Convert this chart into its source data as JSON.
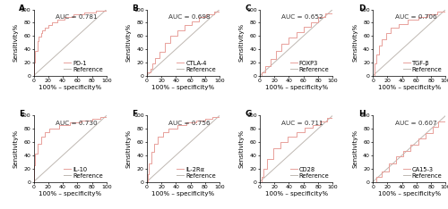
{
  "panels": [
    {
      "label": "A",
      "auc": 0.781,
      "molecule": "PD-1",
      "curve_type": "A"
    },
    {
      "label": "B",
      "auc": 0.698,
      "molecule": "CTLA-4",
      "curve_type": "B"
    },
    {
      "label": "C",
      "auc": 0.652,
      "molecule": "FOXP3",
      "curve_type": "C"
    },
    {
      "label": "D",
      "auc": 0.706,
      "molecule": "TGF-β",
      "curve_type": "D"
    },
    {
      "label": "E",
      "auc": 0.73,
      "molecule": "IL-10",
      "curve_type": "E"
    },
    {
      "label": "F",
      "auc": 0.756,
      "molecule": "IL-2Rα",
      "curve_type": "F"
    },
    {
      "label": "G",
      "auc": 0.711,
      "molecule": "CD28",
      "curve_type": "G"
    },
    {
      "label": "H",
      "auc": 0.607,
      "molecule": "CA15-3",
      "curve_type": "H"
    }
  ],
  "roc_color": "#e8a09a",
  "ref_color": "#bfb8b2",
  "bg_color": "#ffffff",
  "tick_fontsize": 4.5,
  "label_fontsize": 5.0,
  "auc_fontsize": 5.2,
  "legend_fontsize": 4.8,
  "panel_label_fontsize": 6.5
}
